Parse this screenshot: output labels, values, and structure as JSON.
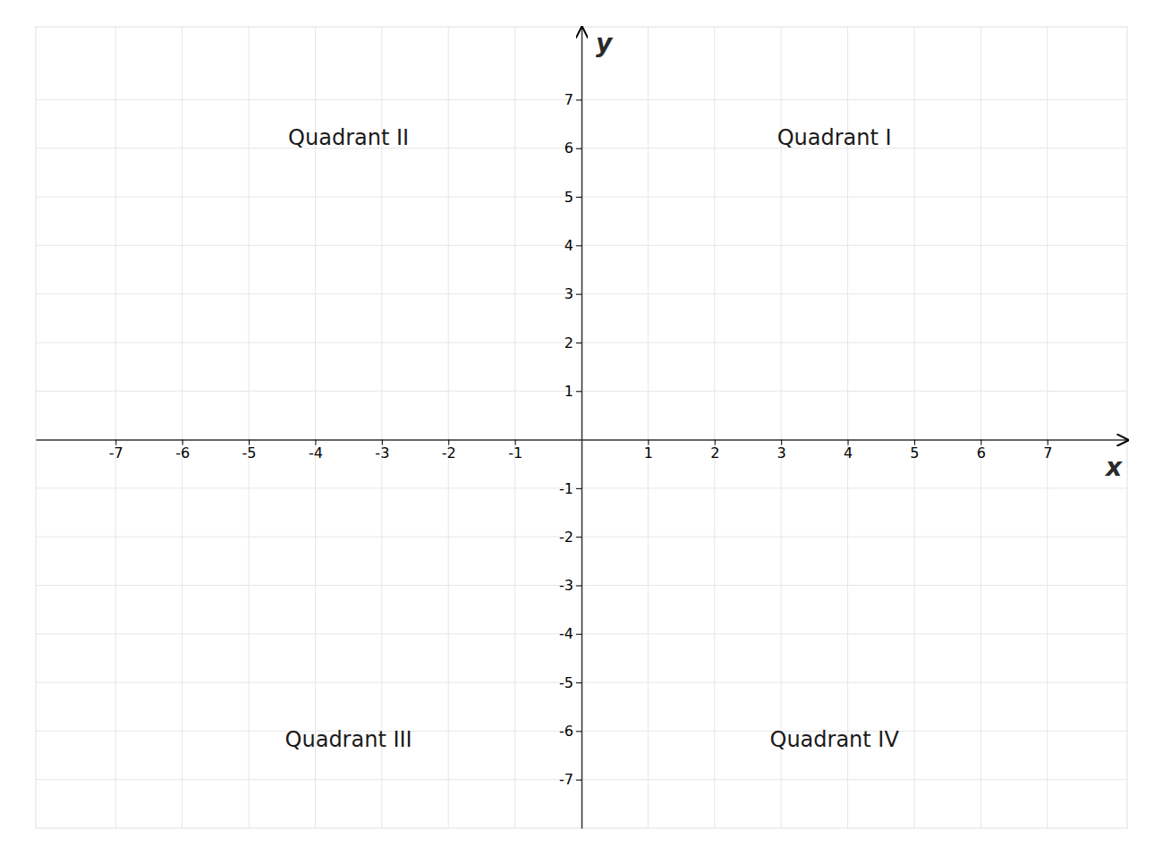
{
  "chart_data": {
    "type": "plane",
    "x_label": "x",
    "y_label": "y",
    "xlim": [
      -8.2,
      8.2
    ],
    "ylim": [
      -8.0,
      8.5
    ],
    "xticks": [
      -7,
      -6,
      -5,
      -4,
      -3,
      -2,
      -1,
      1,
      2,
      3,
      4,
      5,
      6,
      7
    ],
    "yticks": [
      -7,
      -6,
      -5,
      -4,
      -3,
      -2,
      -1,
      1,
      2,
      3,
      4,
      5,
      6,
      7
    ],
    "grid": true,
    "annotations": [
      {
        "text": "Quadrant I",
        "x": 3.8,
        "y": 6.2
      },
      {
        "text": "Quadrant II",
        "x": -3.5,
        "y": 6.2
      },
      {
        "text": "Quadrant III",
        "x": -3.5,
        "y": -6.2
      },
      {
        "text": "Quadrant IV",
        "x": 3.8,
        "y": -6.2
      }
    ]
  }
}
